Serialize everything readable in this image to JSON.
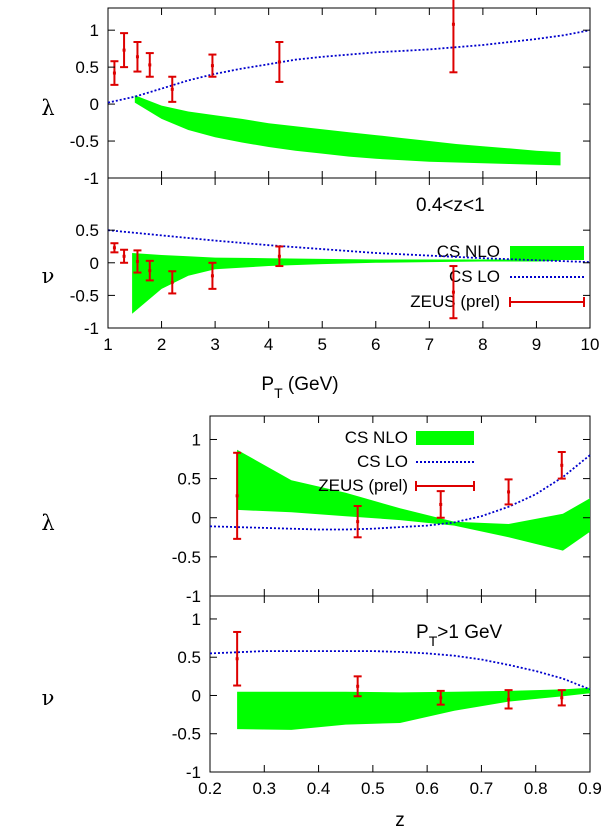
{
  "chart_data": [
    {
      "type": "line",
      "panel": "lambda vs PT",
      "ylabel": "λ",
      "xlim": [
        1,
        10
      ],
      "ylim": [
        -1,
        1.3
      ],
      "yticks": [
        "1",
        "0.5",
        "0",
        "-0.5",
        "-1"
      ],
      "legend": {
        "placement": "right",
        "entries": [
          "CS NLO",
          "CS LO",
          "ZEUS (prel)"
        ]
      },
      "series": [
        {
          "name": "CS NLO",
          "kind": "band",
          "color": "#00ff00",
          "x": [
            1.5,
            2,
            2.5,
            3,
            3.5,
            4,
            4.5,
            5,
            5.5,
            6,
            6.5,
            7,
            7.5,
            8,
            8.5,
            9,
            9.45
          ],
          "upper": [
            0.12,
            -0.02,
            -0.1,
            -0.15,
            -0.2,
            -0.26,
            -0.3,
            -0.34,
            -0.38,
            -0.42,
            -0.46,
            -0.5,
            -0.54,
            -0.57,
            -0.6,
            -0.63,
            -0.65
          ],
          "lower": [
            0.02,
            -0.2,
            -0.35,
            -0.45,
            -0.52,
            -0.58,
            -0.63,
            -0.67,
            -0.71,
            -0.74,
            -0.76,
            -0.78,
            -0.79,
            -0.8,
            -0.81,
            -0.82,
            -0.83
          ]
        },
        {
          "name": "CS LO",
          "kind": "line",
          "color": "#0000cc",
          "x": [
            1,
            1.5,
            2,
            2.5,
            3,
            3.5,
            4,
            4.5,
            5,
            5.5,
            6,
            6.5,
            7,
            7.5,
            8,
            8.5,
            9,
            9.5,
            10
          ],
          "y": [
            0.02,
            0.1,
            0.21,
            0.32,
            0.41,
            0.48,
            0.54,
            0.6,
            0.64,
            0.67,
            0.7,
            0.72,
            0.74,
            0.77,
            0.8,
            0.84,
            0.88,
            0.93,
            1.0
          ]
        },
        {
          "name": "ZEUS (prel)",
          "kind": "errorbar",
          "color": "#dd0000",
          "x": [
            1.12,
            1.3,
            1.55,
            1.78,
            2.2,
            2.95,
            4.2,
            7.45
          ],
          "y": [
            0.42,
            0.73,
            0.64,
            0.53,
            0.2,
            0.52,
            0.57,
            1.08
          ],
          "yerr": [
            0.16,
            0.23,
            0.2,
            0.16,
            0.17,
            0.15,
            0.27,
            0.65
          ]
        }
      ]
    },
    {
      "type": "line",
      "panel": "nu vs PT",
      "ylabel": "ν",
      "xlabel_main": "P",
      "xlabel_sub": "T",
      "xlabel_unit": " (GeV)",
      "annotation": "0.4<z<1",
      "xlim": [
        1,
        10
      ],
      "ylim": [
        -1,
        1.3
      ],
      "xticks": [
        "1",
        "2",
        "3",
        "4",
        "5",
        "6",
        "7",
        "8",
        "9",
        "10"
      ],
      "yticks": [
        "0.5",
        "0",
        "-0.5",
        "-1"
      ],
      "series": [
        {
          "name": "CS NLO",
          "kind": "band",
          "color": "#00ff00",
          "x": [
            1.45,
            2,
            2.5,
            3,
            4,
            5,
            6,
            7,
            8,
            9,
            9.45
          ],
          "upper": [
            0.15,
            0.12,
            0.1,
            0.08,
            0.07,
            0.06,
            0.05,
            0.05,
            0.05,
            0.05,
            0.05
          ],
          "lower": [
            -0.78,
            -0.4,
            -0.2,
            -0.1,
            -0.05,
            -0.02,
            0.0,
            0.01,
            0.02,
            0.02,
            0.03
          ]
        },
        {
          "name": "CS LO",
          "kind": "line",
          "color": "#0000cc",
          "x": [
            1,
            2,
            3,
            4,
            5,
            6,
            7,
            8,
            9,
            10
          ],
          "y": [
            0.5,
            0.42,
            0.34,
            0.27,
            0.21,
            0.15,
            0.11,
            0.07,
            0.04,
            0.01
          ]
        },
        {
          "name": "ZEUS (prel)",
          "kind": "errorbar",
          "color": "#dd0000",
          "x": [
            1.12,
            1.3,
            1.55,
            1.78,
            2.2,
            2.95,
            4.2,
            7.45
          ],
          "y": [
            0.23,
            0.1,
            0.02,
            -0.12,
            -0.3,
            -0.2,
            0.1,
            -0.45
          ],
          "yerr": [
            0.07,
            0.1,
            0.17,
            0.15,
            0.17,
            0.2,
            0.15,
            0.4
          ]
        }
      ]
    },
    {
      "type": "line",
      "panel": "lambda vs z",
      "ylabel": "λ",
      "xlim": [
        0.2,
        0.9
      ],
      "ylim": [
        -1,
        1.3
      ],
      "yticks": [
        "1",
        "0.5",
        "0",
        "-0.5",
        "-1"
      ],
      "legend": {
        "placement": "top",
        "entries": [
          "CS NLO",
          "CS LO",
          "ZEUS (prel)"
        ]
      },
      "series": [
        {
          "name": "CS NLO",
          "kind": "band",
          "color": "#00ff00",
          "x": [
            0.25,
            0.35,
            0.45,
            0.55,
            0.65,
            0.75,
            0.85,
            0.9
          ],
          "upper": [
            0.87,
            0.48,
            0.32,
            0.12,
            -0.05,
            -0.08,
            0.05,
            0.25
          ],
          "lower": [
            0.1,
            0.07,
            0.02,
            -0.03,
            -0.1,
            -0.25,
            -0.42,
            -0.18
          ]
        },
        {
          "name": "CS LO",
          "kind": "line",
          "color": "#0000cc",
          "x": [
            0.2,
            0.3,
            0.4,
            0.45,
            0.5,
            0.55,
            0.6,
            0.65,
            0.7,
            0.75,
            0.8,
            0.85,
            0.9
          ],
          "y": [
            -0.11,
            -0.13,
            -0.15,
            -0.15,
            -0.14,
            -0.12,
            -0.1,
            -0.06,
            0.02,
            0.14,
            0.3,
            0.52,
            0.8
          ]
        },
        {
          "name": "ZEUS (prel)",
          "kind": "errorbar",
          "color": "#dd0000",
          "x": [
            0.25,
            0.472,
            0.625,
            0.75,
            0.848
          ],
          "y": [
            0.28,
            -0.05,
            0.17,
            0.33,
            0.67
          ],
          "yerr": [
            0.55,
            0.2,
            0.17,
            0.16,
            0.17
          ]
        }
      ]
    },
    {
      "type": "line",
      "panel": "nu vs z",
      "ylabel": "ν",
      "xlabel": "z",
      "annotation_main": "P",
      "annotation_sub": "T",
      "annotation_rest": ">1 GeV",
      "xlim": [
        0.2,
        0.9
      ],
      "ylim": [
        -1,
        1.3
      ],
      "xticks": [
        "0.2",
        "0.3",
        "0.4",
        "0.5",
        "0.6",
        "0.7",
        "0.8",
        "0.9"
      ],
      "yticks": [
        "1",
        "0.5",
        "0",
        "-0.5",
        "-1"
      ],
      "series": [
        {
          "name": "CS NLO",
          "kind": "band",
          "color": "#00ff00",
          "x": [
            0.25,
            0.35,
            0.45,
            0.55,
            0.65,
            0.75,
            0.85,
            0.9
          ],
          "upper": [
            0.05,
            0.05,
            0.05,
            0.04,
            0.05,
            0.06,
            0.08,
            0.1
          ],
          "lower": [
            -0.44,
            -0.45,
            -0.38,
            -0.36,
            -0.2,
            -0.08,
            -0.01,
            0.03
          ]
        },
        {
          "name": "CS LO",
          "kind": "line",
          "color": "#0000cc",
          "x": [
            0.2,
            0.3,
            0.4,
            0.5,
            0.55,
            0.6,
            0.65,
            0.7,
            0.75,
            0.8,
            0.85,
            0.9
          ],
          "y": [
            0.55,
            0.58,
            0.58,
            0.58,
            0.57,
            0.55,
            0.52,
            0.47,
            0.4,
            0.32,
            0.22,
            0.08
          ]
        },
        {
          "name": "ZEUS (prel)",
          "kind": "errorbar",
          "color": "#dd0000",
          "x": [
            0.25,
            0.472,
            0.625,
            0.75,
            0.848
          ],
          "y": [
            0.48,
            0.12,
            -0.03,
            -0.05,
            -0.03
          ],
          "yerr": [
            0.35,
            0.13,
            0.09,
            0.12,
            0.1
          ]
        }
      ]
    }
  ]
}
